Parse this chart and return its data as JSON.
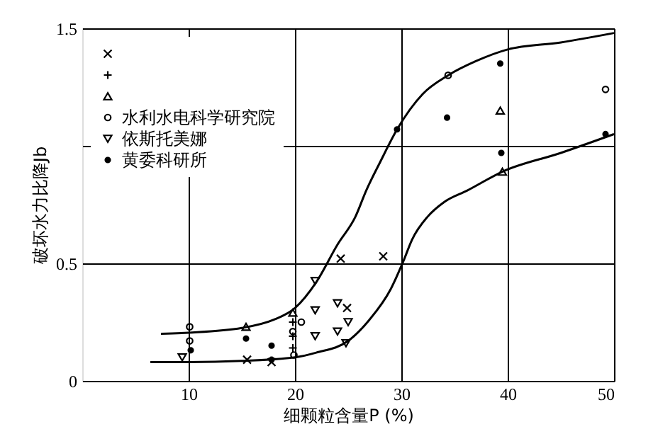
{
  "chart_data": {
    "type": "scatter",
    "xlabel": "细颗粒含量P (%)",
    "ylabel": "破坏水力比降Jb",
    "xlim": [
      0,
      50
    ],
    "ylim": [
      0,
      1.5
    ],
    "xticks": [
      10,
      20,
      30,
      40,
      50
    ],
    "yticks": [
      0,
      0.5,
      {
        "value": 1,
        "label": null
      },
      1.5
    ],
    "grid": true,
    "legend": "top left",
    "series": [
      {
        "type": "line",
        "color": "#000000",
        "marker": "none",
        "x": [
          7.4,
          10,
          15,
          18,
          20,
          22,
          24,
          25.7,
          26.7,
          28,
          29.6,
          32,
          34.4,
          37,
          40,
          45,
          50
        ],
        "values": [
          0.2,
          0.205,
          0.225,
          0.26,
          0.31,
          0.42,
          0.58,
          0.7,
          0.81,
          0.93,
          1.07,
          1.22,
          1.3,
          1.36,
          1.41,
          1.44,
          1.48
        ]
      },
      {
        "type": "line",
        "color": "#000000",
        "marker": "none",
        "x": [
          6.4,
          10,
          15,
          20,
          22,
          25,
          27,
          29,
          30.2,
          31,
          32.5,
          34,
          36.2,
          39.5,
          45,
          50
        ],
        "values": [
          0.08,
          0.08,
          0.085,
          0.1,
          0.12,
          0.17,
          0.26,
          0.39,
          0.51,
          0.6,
          0.7,
          0.76,
          0.81,
          0.89,
          0.97,
          1.05
        ]
      },
      {
        "color": "#000000",
        "marker": "x",
        "x": [
          15.5,
          17.8,
          24.3,
          28.3,
          24.9
        ],
        "values": [
          0.09,
          0.08,
          0.52,
          0.53,
          0.31
        ]
      },
      {
        "color": "#000000",
        "marker": "cross",
        "x": [
          19.8,
          19.8,
          19.8
        ],
        "values": [
          0.25,
          0.19,
          0.14
        ]
      },
      {
        "color": "#000000",
        "marker": "triangle",
        "x": [
          15.4,
          19.8,
          39.3,
          39.5
        ],
        "values": [
          0.23,
          0.29,
          1.15,
          0.89
        ]
      },
      {
        "color": "#000000",
        "marker": "circle",
        "name": "水利水电科学研究院",
        "x": [
          10.1,
          10.1,
          20.6,
          19.8,
          19.9,
          34.4,
          49.2
        ],
        "values": [
          0.23,
          0.17,
          0.25,
          0.21,
          0.11,
          1.3,
          1.24
        ]
      },
      {
        "color": "#000000",
        "marker": "triangle_down",
        "name": "依斯托美娜",
        "x": [
          9.4,
          21.9,
          21.9,
          21.9,
          24.0,
          25.0,
          24.0,
          24.8
        ],
        "values": [
          0.1,
          0.425,
          0.3,
          0.19,
          0.33,
          0.25,
          0.21,
          0.16
        ]
      },
      {
        "color": "#000000",
        "marker": "dot",
        "name": "黄委科研所",
        "x": [
          10.2,
          15.4,
          17.8,
          17.8,
          29.6,
          34.3,
          39.3,
          39.4,
          49.2
        ],
        "values": [
          0.13,
          0.18,
          0.15,
          0.09,
          1.07,
          1.12,
          1.35,
          0.97,
          1.05
        ]
      }
    ]
  }
}
